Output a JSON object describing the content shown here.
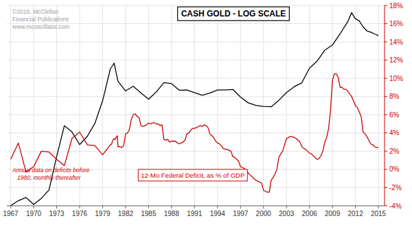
{
  "chart_data": {
    "type": "line",
    "title": "CASH GOLD - LOG SCALE",
    "annotations": [
      "©2015, McClellan\nFinancial Publications\nwww.mcoscillator.com",
      "Annual data on deficits before\n   1980, monthly thereafter",
      "12-Mo Federal Deficit, as % of GDP"
    ],
    "log": "y",
    "grid": true,
    "xlim": [
      1966.5,
      2015.8
    ],
    "xticks": [
      1967,
      1970,
      1973,
      1976,
      1979,
      1982,
      1985,
      1988,
      1991,
      1994,
      1997,
      2000,
      2003,
      2006,
      2009,
      2012,
      2015
    ],
    "ylim": [
      34.9945,
      2197.86
    ],
    "y2lim": [
      -4,
      18
    ],
    "y2ticks": [
      {
        "value": -4,
        "label": "-4%"
      },
      {
        "value": -2,
        "label": "-2%"
      },
      {
        "value": 0,
        "label": "0%"
      },
      {
        "value": 2,
        "label": "2%"
      },
      {
        "value": 4,
        "label": "4%"
      },
      {
        "value": 6,
        "label": "6%"
      },
      {
        "value": 8,
        "label": "8%"
      },
      {
        "value": 10,
        "label": "10%"
      },
      {
        "value": 12,
        "label": "12%"
      },
      {
        "value": 14,
        "label": "14%"
      },
      {
        "value": 16,
        "label": "16%"
      },
      {
        "value": 18,
        "label": "18%"
      }
    ],
    "series": [
      {
        "color": "#000000",
        "x": [
          1967.0,
          1968.0,
          1969.0,
          1970.0,
          1971.0,
          1972.0,
          1973.0,
          1974.0,
          1975.0,
          1976.0,
          1977.0,
          1978.0,
          1979.0,
          1980.0,
          1980.5,
          1981.0,
          1982.0,
          1983.0,
          1984.0,
          1985.0,
          1986.0,
          1987.0,
          1988.0,
          1989.0,
          1990.0,
          1991.0,
          1992.0,
          1993.0,
          1994.0,
          1995.0,
          1996.0,
          1997.0,
          1998.0,
          1999.0,
          2000.0,
          2001.0,
          2002.0,
          2003.0,
          2004.0,
          2005.0,
          2006.0,
          2007.0,
          2008.0,
          2009.0,
          2010.0,
          2011.0,
          2011.5,
          2012.0,
          2012.5,
          2013.0,
          2013.5,
          2014.0,
          2014.5,
          2015.0
        ],
        "values": [
          35.1,
          38.9,
          41.5,
          36.0,
          40.8,
          48.6,
          97.0,
          183.0,
          161.0,
          124.0,
          147.0,
          193.0,
          307.0,
          590.0,
          668.0,
          460.0,
          376.0,
          414.0,
          360.0,
          317.0,
          368.0,
          447.0,
          437.0,
          381.0,
          383.0,
          362.0,
          344.0,
          360.0,
          384.0,
          384.0,
          388.0,
          331.0,
          294.0,
          279.0,
          273.0,
          271.0,
          310.0,
          363.0,
          410.0,
          444.0,
          603.0,
          695.0,
          872.0,
          972.0,
          1225.0,
          1571.0,
          1895.0,
          1669.0,
          1600.0,
          1411.0,
          1300.0,
          1266.0,
          1220.0,
          1180.0
        ]
      },
      {
        "color": "#cc0000",
        "axis": "y2",
        "x": [
          1967.0,
          1968.0,
          1969.0,
          1970.0,
          1971.0,
          1972.0,
          1973.0,
          1974.0,
          1975.0,
          1976.0,
          1977.0,
          1978.0,
          1979.0,
          1980.0,
          1980.083,
          1980.167,
          1980.25,
          1980.333,
          1980.417,
          1980.5,
          1980.583,
          1980.667,
          1980.75,
          1980.833,
          1980.917,
          1981.0,
          1981.25,
          1981.5,
          1981.75,
          1982.0,
          1982.25,
          1982.5,
          1982.75,
          1983.0,
          1983.25,
          1983.5,
          1983.75,
          1984.0,
          1984.25,
          1984.5,
          1984.75,
          1985.0,
          1985.25,
          1985.5,
          1985.75,
          1986.0,
          1986.25,
          1986.5,
          1986.75,
          1987.0,
          1987.25,
          1987.5,
          1987.75,
          1988.0,
          1988.25,
          1988.5,
          1988.75,
          1989.0,
          1989.25,
          1989.5,
          1989.75,
          1990.0,
          1990.25,
          1990.5,
          1990.75,
          1991.0,
          1991.25,
          1991.5,
          1991.75,
          1992.0,
          1992.25,
          1992.5,
          1992.75,
          1993.0,
          1993.25,
          1993.5,
          1993.75,
          1994.0,
          1994.25,
          1994.5,
          1994.75,
          1995.0,
          1995.25,
          1995.5,
          1995.75,
          1996.0,
          1996.25,
          1996.5,
          1996.75,
          1997.0,
          1997.25,
          1997.5,
          1997.75,
          1998.0,
          1998.25,
          1998.5,
          1998.75,
          1999.0,
          1999.25,
          1999.5,
          1999.75,
          2000.0,
          2000.25,
          2000.5,
          2000.75,
          2001.0,
          2001.25,
          2001.5,
          2001.75,
          2002.0,
          2002.25,
          2002.5,
          2002.75,
          2003.0,
          2003.25,
          2003.5,
          2003.75,
          2004.0,
          2004.25,
          2004.5,
          2004.75,
          2005.0,
          2005.25,
          2005.5,
          2005.75,
          2006.0,
          2006.25,
          2006.5,
          2006.75,
          2007.0,
          2007.25,
          2007.5,
          2007.75,
          2008.0,
          2008.25,
          2008.5,
          2008.75,
          2009.0,
          2009.25,
          2009.5,
          2009.75,
          2010.0,
          2010.25,
          2010.5,
          2010.75,
          2011.0,
          2011.25,
          2011.5,
          2011.75,
          2012.0,
          2012.25,
          2012.5,
          2012.75,
          2013.0,
          2013.25,
          2013.5,
          2013.75,
          2014.0,
          2014.25,
          2014.5,
          2014.75,
          2015.0
        ],
        "values": [
          1.1,
          2.9,
          -0.3,
          0.3,
          2.0,
          1.9,
          1.1,
          0.4,
          3.4,
          4.1,
          2.7,
          2.6,
          1.6,
          2.7,
          2.7,
          2.8,
          3.0,
          3.2,
          3.3,
          3.4,
          3.3,
          3.3,
          3.5,
          3.6,
          3.7,
          2.5,
          2.5,
          2.4,
          2.6,
          3.9,
          4.0,
          4.4,
          5.5,
          6.0,
          6.1,
          5.8,
          5.7,
          4.8,
          4.7,
          4.8,
          4.9,
          5.1,
          5.0,
          5.1,
          5.1,
          5.0,
          5.0,
          4.8,
          4.9,
          3.3,
          3.2,
          3.3,
          3.0,
          3.1,
          3.1,
          3.1,
          2.9,
          2.8,
          2.9,
          3.0,
          3.2,
          3.9,
          4.0,
          4.3,
          4.5,
          4.5,
          4.6,
          4.7,
          4.8,
          4.7,
          4.9,
          4.8,
          4.6,
          3.9,
          3.7,
          3.5,
          3.1,
          2.9,
          2.8,
          2.6,
          2.3,
          2.2,
          2.2,
          2.1,
          2.0,
          1.4,
          1.3,
          1.1,
          0.9,
          0.3,
          0.2,
          0.1,
          -0.1,
          -0.4,
          -0.6,
          -0.8,
          -1.0,
          -1.2,
          -1.3,
          -1.4,
          -1.5,
          -2.3,
          -2.4,
          -2.5,
          -2.5,
          -1.2,
          -0.9,
          -0.5,
          0.0,
          1.3,
          1.7,
          2.0,
          2.7,
          3.4,
          3.5,
          3.6,
          3.6,
          3.5,
          3.4,
          3.2,
          3.0,
          2.5,
          2.3,
          2.2,
          2.0,
          1.8,
          1.7,
          1.5,
          1.3,
          1.1,
          1.2,
          1.5,
          2.0,
          3.0,
          3.5,
          4.5,
          6.5,
          9.8,
          10.5,
          10.5,
          10.1,
          9.0,
          9.0,
          8.8,
          8.8,
          8.6,
          8.3,
          8.0,
          7.5,
          7.0,
          6.8,
          6.3,
          5.8,
          4.1,
          3.9,
          3.6,
          3.2,
          2.8,
          2.7,
          2.5,
          2.4,
          2.4
        ]
      }
    ]
  }
}
